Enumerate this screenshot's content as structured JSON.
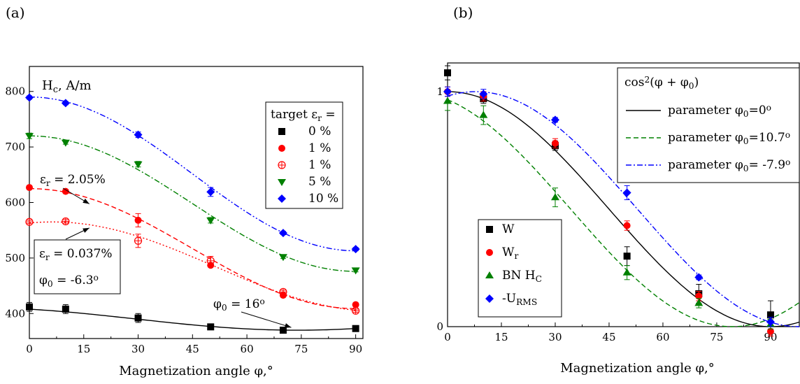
{
  "chart_data": [
    {
      "panel_label": "(a)",
      "type": "scatter",
      "xlabel": "Magnetization angle φ,°",
      "ylabel": "Hc, A/m",
      "xlim": [
        0,
        92
      ],
      "ylim": [
        355,
        845
      ],
      "x_ticks": [
        0,
        15,
        30,
        45,
        60,
        75,
        90
      ],
      "y_ticks": [
        400,
        500,
        600,
        700,
        800
      ],
      "x_tick_labels": [
        "0",
        "15",
        "30",
        "45",
        "60",
        "75",
        "90"
      ],
      "y_tick_labels": [
        "400",
        "500",
        "600",
        "700",
        "800"
      ],
      "legend_title": "target εr =",
      "legend_position": "top-right",
      "series": [
        {
          "name": "0 %",
          "marker": "square",
          "color": "#000000",
          "x": [
            0,
            10,
            30,
            50,
            70,
            90
          ],
          "y": [
            412,
            408,
            392,
            376,
            370,
            373
          ],
          "err": [
            8,
            8,
            8,
            3,
            3,
            3
          ]
        },
        {
          "name": "1 %",
          "marker": "circle",
          "color": "#ff0000",
          "x": [
            0,
            10,
            30,
            50,
            70,
            90
          ],
          "y": [
            627,
            620,
            568,
            487,
            433,
            416
          ],
          "err": [
            3,
            3,
            12,
            3,
            3,
            3
          ]
        },
        {
          "name": "1 %",
          "marker": "circle-plus",
          "color": "#ff0000",
          "x": [
            0,
            10,
            30,
            50,
            70,
            90
          ],
          "y": [
            565,
            566,
            531,
            495,
            439,
            405
          ],
          "err": [
            3,
            3,
            12,
            8,
            3,
            3
          ]
        },
        {
          "name": "5 %",
          "marker": "triangle-down",
          "color": "#008000",
          "x": [
            0,
            10,
            30,
            50,
            70,
            90
          ],
          "y": [
            720,
            708,
            669,
            568,
            502,
            478
          ],
          "err": [
            5,
            3,
            5,
            5,
            3,
            3
          ]
        },
        {
          "name": "10 %",
          "marker": "diamond",
          "color": "#0000ff",
          "x": [
            0,
            10,
            30,
            50,
            70,
            90
          ],
          "y": [
            789,
            779,
            722,
            619,
            545,
            516
          ],
          "err": [
            3,
            3,
            5,
            8,
            3,
            3
          ]
        }
      ],
      "fit_curves": [
        {
          "color": "#000000",
          "style": "solid",
          "phi0_deg": 16,
          "A": 370,
          "B": 41
        },
        {
          "color": "#ff0000",
          "style": "dashed",
          "phi0_deg": 0,
          "A": 409,
          "B": 216
        },
        {
          "color": "#ff0000",
          "style": "dotted",
          "phi0_deg": -6.3,
          "A": 404,
          "B": 161
        },
        {
          "color": "#008000",
          "style": "dash-dot",
          "phi0_deg": 0,
          "A": 476,
          "B": 244
        },
        {
          "color": "#0000ff",
          "style": "dash-dot-dot",
          "phi0_deg": 0,
          "A": 513,
          "B": 277
        }
      ],
      "annotations": [
        {
          "text_main": "ε",
          "text_sub": "r",
          "text_rest": " = 2.05%",
          "arrow_to": [
            15,
            600
          ]
        },
        {
          "text_main": "ε",
          "text_sub": "r",
          "text_rest": " = 0.037%",
          "arrow_to": [
            15,
            563
          ]
        },
        {
          "text_main": "φ",
          "text_sub": "0",
          "text_rest": " = -6.3",
          "text_sup": "o"
        },
        {
          "text_main": "φ",
          "text_sub": "0",
          "text_rest": " = 16",
          "text_sup": "o",
          "arrow_to": [
            73,
            370
          ]
        }
      ]
    },
    {
      "panel_label": "(b)",
      "type": "scatter",
      "xlabel": "Magnetization angle φ,°",
      "ylabel": "",
      "xlim": [
        0,
        98
      ],
      "ylim": [
        0,
        1.1
      ],
      "x_ticks": [
        0,
        15,
        30,
        45,
        60,
        75,
        90
      ],
      "y_ticks": [
        0,
        1
      ],
      "x_tick_labels": [
        "0",
        "15",
        "30",
        "45",
        "60",
        "75",
        "90"
      ],
      "y_tick_labels": [
        "0",
        "1"
      ],
      "fit_legend_title": "cos²(φ + φ0)",
      "legend_position": "top-right",
      "fit_curves": [
        {
          "label": "parameter φ0=0°",
          "phi0_deg": 0,
          "color": "#000000",
          "style": "solid"
        },
        {
          "label": "parameter φ0=10.7°",
          "phi0_deg": 10.7,
          "color": "#008000",
          "style": "dashed"
        },
        {
          "label": "parameter φ0= -7.9°",
          "phi0_deg": -7.9,
          "color": "#0000ff",
          "style": "dash-dot"
        }
      ],
      "marker_legend_position": "bottom-left",
      "series": [
        {
          "name": "W",
          "marker": "square",
          "color": "#000000",
          "x": [
            0,
            10,
            30,
            50,
            70,
            90
          ],
          "y": [
            1.08,
            0.97,
            0.77,
            0.3,
            0.14,
            0.05
          ],
          "err": [
            0.03,
            0.02,
            0.02,
            0.04,
            0.04,
            0.06
          ]
        },
        {
          "name": "Wr",
          "marker": "circle",
          "color": "#ff0000",
          "x": [
            0,
            10,
            30,
            50,
            70,
            90
          ],
          "y": [
            1.0,
            0.98,
            0.78,
            0.43,
            0.13,
            -0.02
          ],
          "err": [
            0.02,
            0.02,
            0.02,
            0.02,
            0.02,
            0.02
          ]
        },
        {
          "name": "BN HC",
          "marker": "triangle",
          "color": "#008000",
          "x": [
            0,
            10,
            30,
            50,
            70,
            90
          ],
          "y": [
            0.96,
            0.9,
            0.55,
            0.23,
            0.1,
            0.01
          ],
          "err": [
            0.04,
            0.04,
            0.04,
            0.03,
            0.02,
            0.02
          ]
        },
        {
          "name": "-URMS",
          "marker": "diamond",
          "color": "#0000ff",
          "x": [
            0,
            10,
            30,
            50,
            70,
            90
          ],
          "y": [
            1.0,
            0.99,
            0.88,
            0.57,
            0.21,
            0.02
          ],
          "err": [
            0.02,
            0.02,
            0.01,
            0.03,
            0.01,
            0.02
          ]
        }
      ]
    }
  ]
}
